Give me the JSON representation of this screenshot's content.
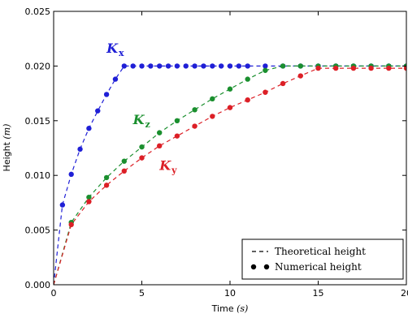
{
  "chart_data": {
    "type": "line",
    "title": "",
    "xlabel": "Time",
    "xunit": "(s)",
    "ylabel": "Height",
    "yunit": "(m)",
    "xlim": [
      0,
      20
    ],
    "ylim": [
      0,
      0.025
    ],
    "xticks": [
      "0",
      "5",
      "10",
      "15",
      "20"
    ],
    "yticks": [
      "0.000",
      "0.005",
      "0.010",
      "0.015",
      "0.020",
      "0.025"
    ],
    "grid": false,
    "legend": {
      "placement": "bottom-right",
      "entries": [
        {
          "marker": "dashed-line",
          "label": "Theoretical height"
        },
        {
          "marker": "dot",
          "label": "Numerical height"
        }
      ]
    },
    "series": [
      {
        "name": "Kx",
        "label_main": "K",
        "label_sub": "x",
        "color": "#1f1fd6",
        "theoretical": {
          "x": [
            0,
            0.5,
            1,
            1.5,
            2,
            2.5,
            3,
            3.5,
            4,
            20
          ],
          "y": [
            0,
            0.0073,
            0.0101,
            0.0124,
            0.0143,
            0.0159,
            0.0174,
            0.0188,
            0.02,
            0.02
          ]
        },
        "numerical": {
          "x": [
            0.5,
            1,
            1.5,
            2,
            2.5,
            3,
            3.5,
            4,
            4.5,
            5,
            5.5,
            6,
            6.5,
            7,
            7.5,
            8,
            8.5,
            9,
            9.5,
            10,
            10.5,
            11,
            12,
            13,
            14,
            15,
            16,
            17,
            18,
            19,
            20
          ],
          "y": [
            0.0073,
            0.0101,
            0.0124,
            0.0143,
            0.0159,
            0.0174,
            0.0188,
            0.02,
            0.02,
            0.02,
            0.02,
            0.02,
            0.02,
            0.02,
            0.02,
            0.02,
            0.02,
            0.02,
            0.02,
            0.02,
            0.02,
            0.02,
            0.02,
            0.02,
            0.02,
            0.02,
            0.02,
            0.02,
            0.02,
            0.02,
            0.02
          ]
        }
      },
      {
        "name": "Kz",
        "label_main": "K",
        "label_sub": "z",
        "color": "#1a8f2e",
        "theoretical": {
          "x": [
            0,
            1,
            2,
            3,
            4,
            5,
            6,
            7,
            8,
            9,
            10,
            11,
            12,
            13,
            20
          ],
          "y": [
            0,
            0.0057,
            0.008,
            0.0098,
            0.0113,
            0.0126,
            0.0139,
            0.015,
            0.016,
            0.017,
            0.0179,
            0.0188,
            0.0196,
            0.02,
            0.02
          ]
        },
        "numerical": {
          "x": [
            1,
            2,
            3,
            4,
            5,
            6,
            7,
            8,
            9,
            10,
            11,
            12,
            13,
            14,
            15,
            16,
            17,
            18,
            19,
            20
          ],
          "y": [
            0.0057,
            0.008,
            0.0098,
            0.0113,
            0.0126,
            0.0139,
            0.015,
            0.016,
            0.017,
            0.0179,
            0.0188,
            0.0196,
            0.02,
            0.02,
            0.02,
            0.02,
            0.02,
            0.02,
            0.02,
            0.02
          ]
        }
      },
      {
        "name": "Ky",
        "label_main": "K",
        "label_sub": "y",
        "color": "#dc1f26",
        "theoretical": {
          "x": [
            0,
            1,
            2,
            3,
            4,
            5,
            6,
            7,
            8,
            9,
            10,
            11,
            12,
            13,
            14,
            15,
            20
          ],
          "y": [
            0,
            0.0055,
            0.0076,
            0.0091,
            0.0104,
            0.0116,
            0.0127,
            0.0136,
            0.0145,
            0.0154,
            0.0162,
            0.0169,
            0.0176,
            0.0184,
            0.0191,
            0.0198,
            0.0198
          ]
        },
        "numerical": {
          "x": [
            1,
            2,
            3,
            4,
            5,
            6,
            7,
            8,
            9,
            10,
            11,
            12,
            13,
            14,
            15,
            16,
            17,
            18,
            19,
            20
          ],
          "y": [
            0.0055,
            0.0076,
            0.0091,
            0.0104,
            0.0116,
            0.0127,
            0.0136,
            0.0145,
            0.0154,
            0.0162,
            0.0169,
            0.0176,
            0.0184,
            0.0191,
            0.0198,
            0.0198,
            0.0198,
            0.0198,
            0.0198,
            0.0198
          ]
        }
      }
    ],
    "series_label_positions": [
      {
        "series": "Kx",
        "x": 3.0,
        "y": 0.0212
      },
      {
        "series": "Kz",
        "x": 4.5,
        "y": 0.0147
      },
      {
        "series": "Ky",
        "x": 6.0,
        "y": 0.0105
      }
    ]
  }
}
